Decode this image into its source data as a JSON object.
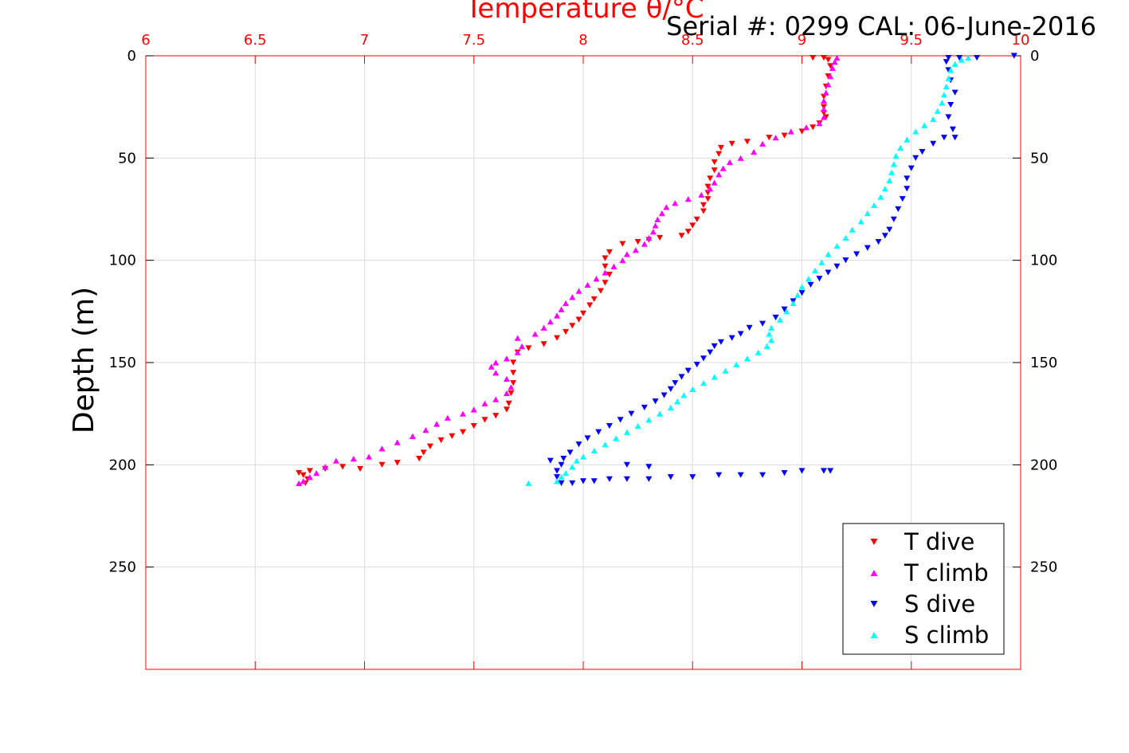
{
  "header": {
    "serial_text": "Serial #: 0299 CAL: 06-June-2016"
  },
  "colors": {
    "axis_top": "#ff0000",
    "t_dive": "#ff0000",
    "t_climb": "#ff00ff",
    "s_dive": "#0000ff",
    "s_climb": "#00ffff",
    "grid": "#dcdcdc"
  },
  "chart_data": {
    "type": "scatter",
    "title": "",
    "xlabel": "Temperature θ/°C",
    "ylabel": "Depth (m)",
    "xlim": [
      6,
      10
    ],
    "ylim": [
      0,
      300
    ],
    "y_reversed": true,
    "grid": true,
    "legend_position": "bottom-right",
    "x_ticks": [
      "6",
      "6.5",
      "7",
      "7.5",
      "8",
      "8.5",
      "9",
      "9.5",
      "10"
    ],
    "x_tick_values": [
      6,
      6.5,
      7,
      7.5,
      8,
      8.5,
      9,
      9.5,
      10
    ],
    "y_ticks_left": [
      "0",
      "50",
      "100",
      "150",
      "200",
      "250"
    ],
    "y_ticks_right": [
      "0",
      "50",
      "100",
      "150",
      "200",
      "250"
    ],
    "y_tick_values": [
      0,
      50,
      100,
      150,
      200,
      250
    ],
    "series": [
      {
        "name": "T dive",
        "marker": "triangle-down",
        "color": "#ff0000",
        "points": [
          [
            9.05,
            1
          ],
          [
            9.1,
            1
          ],
          [
            9.12,
            2
          ],
          [
            9.13,
            5
          ],
          [
            9.12,
            10
          ],
          [
            9.11,
            15
          ],
          [
            9.1,
            20
          ],
          [
            9.1,
            25
          ],
          [
            9.1,
            28
          ],
          [
            9.11,
            30
          ],
          [
            9.08,
            33
          ],
          [
            9.05,
            35
          ],
          [
            9.0,
            37
          ],
          [
            8.92,
            39
          ],
          [
            8.85,
            40
          ],
          [
            8.75,
            42
          ],
          [
            8.68,
            43
          ],
          [
            8.63,
            45
          ],
          [
            8.62,
            48
          ],
          [
            8.6,
            52
          ],
          [
            8.6,
            56
          ],
          [
            8.58,
            60
          ],
          [
            8.57,
            64
          ],
          [
            8.57,
            67
          ],
          [
            8.57,
            70
          ],
          [
            8.55,
            73
          ],
          [
            8.55,
            76
          ],
          [
            8.52,
            80
          ],
          [
            8.5,
            83
          ],
          [
            8.48,
            86
          ],
          [
            8.45,
            88
          ],
          [
            8.35,
            89
          ],
          [
            8.3,
            90
          ],
          [
            8.25,
            91
          ],
          [
            8.18,
            92
          ],
          [
            8.12,
            96
          ],
          [
            8.1,
            99
          ],
          [
            8.1,
            103
          ],
          [
            8.12,
            107
          ],
          [
            8.1,
            111
          ],
          [
            8.08,
            115
          ],
          [
            8.05,
            119
          ],
          [
            8.03,
            122
          ],
          [
            8.0,
            126
          ],
          [
            7.98,
            129
          ],
          [
            7.95,
            132
          ],
          [
            7.92,
            135
          ],
          [
            7.88,
            138
          ],
          [
            7.82,
            141
          ],
          [
            7.75,
            143
          ],
          [
            7.7,
            145
          ],
          [
            7.68,
            150
          ],
          [
            7.68,
            155
          ],
          [
            7.68,
            160
          ],
          [
            7.67,
            165
          ],
          [
            7.66,
            170
          ],
          [
            7.65,
            173
          ],
          [
            7.6,
            176
          ],
          [
            7.55,
            178
          ],
          [
            7.5,
            181
          ],
          [
            7.45,
            184
          ],
          [
            7.4,
            186
          ],
          [
            7.35,
            188
          ],
          [
            7.3,
            191
          ],
          [
            7.27,
            194
          ],
          [
            7.25,
            197
          ],
          [
            7.15,
            199
          ],
          [
            7.08,
            200
          ],
          [
            6.98,
            202
          ],
          [
            6.9,
            201
          ],
          [
            6.82,
            202
          ],
          [
            6.75,
            203
          ],
          [
            6.7,
            204
          ],
          [
            6.72,
            205
          ],
          [
            6.74,
            207
          ],
          [
            6.73,
            209
          ]
        ]
      },
      {
        "name": "T climb",
        "marker": "triangle-up",
        "color": "#ff00ff",
        "points": [
          [
            6.7,
            209
          ],
          [
            6.72,
            208
          ],
          [
            6.75,
            206
          ],
          [
            6.78,
            204
          ],
          [
            6.82,
            201
          ],
          [
            6.87,
            198
          ],
          [
            6.95,
            197
          ],
          [
            7.02,
            196
          ],
          [
            7.08,
            192
          ],
          [
            7.15,
            189
          ],
          [
            7.22,
            186
          ],
          [
            7.28,
            183
          ],
          [
            7.33,
            180
          ],
          [
            7.38,
            177
          ],
          [
            7.45,
            175
          ],
          [
            7.5,
            173
          ],
          [
            7.55,
            170
          ],
          [
            7.6,
            168
          ],
          [
            7.65,
            165
          ],
          [
            7.67,
            162
          ],
          [
            7.65,
            158
          ],
          [
            7.6,
            155
          ],
          [
            7.58,
            152
          ],
          [
            7.6,
            150
          ],
          [
            7.65,
            148
          ],
          [
            7.7,
            145
          ],
          [
            7.72,
            142
          ],
          [
            7.7,
            138
          ],
          [
            7.78,
            136
          ],
          [
            7.82,
            133
          ],
          [
            7.85,
            130
          ],
          [
            7.88,
            127
          ],
          [
            7.9,
            124
          ],
          [
            7.92,
            121
          ],
          [
            7.95,
            118
          ],
          [
            7.98,
            115
          ],
          [
            8.02,
            112
          ],
          [
            8.06,
            109
          ],
          [
            8.1,
            106
          ],
          [
            8.14,
            103
          ],
          [
            8.18,
            100
          ],
          [
            8.2,
            97
          ],
          [
            8.24,
            95
          ],
          [
            8.28,
            92
          ],
          [
            8.3,
            89
          ],
          [
            8.32,
            86
          ],
          [
            8.33,
            83
          ],
          [
            8.34,
            80
          ],
          [
            8.36,
            77
          ],
          [
            8.38,
            74
          ],
          [
            8.42,
            72
          ],
          [
            8.48,
            70
          ],
          [
            8.54,
            68
          ],
          [
            8.58,
            65
          ],
          [
            8.6,
            62
          ],
          [
            8.62,
            58
          ],
          [
            8.64,
            55
          ],
          [
            8.67,
            52
          ],
          [
            8.72,
            50
          ],
          [
            8.78,
            47
          ],
          [
            8.82,
            43
          ],
          [
            8.88,
            40
          ],
          [
            8.95,
            37
          ],
          [
            9.02,
            35
          ],
          [
            9.08,
            33
          ],
          [
            9.1,
            30
          ],
          [
            9.1,
            26
          ],
          [
            9.1,
            22
          ],
          [
            9.11,
            18
          ],
          [
            9.12,
            14
          ],
          [
            9.13,
            10
          ],
          [
            9.14,
            6
          ],
          [
            9.15,
            3
          ],
          [
            9.16,
            1
          ]
        ]
      },
      {
        "name": "S dive",
        "marker": "triangle-down",
        "color": "#0000ff",
        "points": [
          [
            9.97,
            0
          ],
          [
            9.8,
            1
          ],
          [
            9.72,
            1
          ],
          [
            9.67,
            1
          ],
          [
            9.66,
            3
          ],
          [
            9.67,
            7
          ],
          [
            9.68,
            12
          ],
          [
            9.7,
            18
          ],
          [
            9.68,
            24
          ],
          [
            9.67,
            30
          ],
          [
            9.69,
            36
          ],
          [
            9.7,
            40
          ],
          [
            9.65,
            40
          ],
          [
            9.6,
            43
          ],
          [
            9.55,
            47
          ],
          [
            9.52,
            50
          ],
          [
            9.5,
            55
          ],
          [
            9.48,
            60
          ],
          [
            9.48,
            65
          ],
          [
            9.46,
            70
          ],
          [
            9.44,
            75
          ],
          [
            9.42,
            80
          ],
          [
            9.4,
            85
          ],
          [
            9.38,
            88
          ],
          [
            9.35,
            91
          ],
          [
            9.3,
            94
          ],
          [
            9.25,
            97
          ],
          [
            9.2,
            100
          ],
          [
            9.16,
            103
          ],
          [
            9.12,
            106
          ],
          [
            9.08,
            109
          ],
          [
            9.04,
            112
          ],
          [
            9.0,
            116
          ],
          [
            8.96,
            120
          ],
          [
            8.92,
            124
          ],
          [
            8.88,
            128
          ],
          [
            8.82,
            131
          ],
          [
            8.76,
            133
          ],
          [
            8.72,
            136
          ],
          [
            8.68,
            138
          ],
          [
            8.63,
            140
          ],
          [
            8.6,
            142
          ],
          [
            8.58,
            145
          ],
          [
            8.55,
            148
          ],
          [
            8.52,
            151
          ],
          [
            8.48,
            154
          ],
          [
            8.45,
            157
          ],
          [
            8.42,
            160
          ],
          [
            8.4,
            163
          ],
          [
            8.37,
            166
          ],
          [
            8.33,
            169
          ],
          [
            8.28,
            172
          ],
          [
            8.22,
            175
          ],
          [
            8.17,
            178
          ],
          [
            8.12,
            181
          ],
          [
            8.07,
            184
          ],
          [
            8.02,
            187
          ],
          [
            7.98,
            190
          ],
          [
            7.94,
            194
          ],
          [
            7.91,
            197
          ],
          [
            7.9,
            200
          ],
          [
            7.88,
            203
          ],
          [
            7.88,
            206
          ],
          [
            7.9,
            209
          ],
          [
            7.95,
            209
          ],
          [
            8.0,
            208
          ],
          [
            8.05,
            208
          ],
          [
            8.12,
            207
          ],
          [
            8.2,
            207
          ],
          [
            8.3,
            207
          ],
          [
            8.4,
            206
          ],
          [
            8.5,
            206
          ],
          [
            8.62,
            205
          ],
          [
            8.72,
            205
          ],
          [
            8.82,
            205
          ],
          [
            8.92,
            204
          ],
          [
            9.0,
            203
          ],
          [
            9.1,
            203
          ],
          [
            9.13,
            203
          ],
          [
            7.85,
            198
          ],
          [
            8.2,
            200
          ],
          [
            8.3,
            201
          ]
        ]
      },
      {
        "name": "S climb",
        "marker": "triangle-up",
        "color": "#00ffff",
        "points": [
          [
            7.75,
            209
          ],
          [
            7.88,
            208
          ],
          [
            7.9,
            206
          ],
          [
            7.92,
            204
          ],
          [
            7.95,
            201
          ],
          [
            7.97,
            198
          ],
          [
            8.0,
            196
          ],
          [
            8.05,
            193
          ],
          [
            8.1,
            190
          ],
          [
            8.15,
            187
          ],
          [
            8.2,
            184
          ],
          [
            8.25,
            181
          ],
          [
            8.3,
            178
          ],
          [
            8.35,
            175
          ],
          [
            8.4,
            172
          ],
          [
            8.43,
            169
          ],
          [
            8.46,
            166
          ],
          [
            8.5,
            163
          ],
          [
            8.55,
            160
          ],
          [
            8.6,
            157
          ],
          [
            8.65,
            154
          ],
          [
            8.7,
            151
          ],
          [
            8.75,
            148
          ],
          [
            8.8,
            145
          ],
          [
            8.84,
            142
          ],
          [
            8.86,
            139
          ],
          [
            8.85,
            136
          ],
          [
            8.86,
            133
          ],
          [
            8.9,
            129
          ],
          [
            8.93,
            125
          ],
          [
            8.96,
            121
          ],
          [
            8.98,
            117
          ],
          [
            9.0,
            113
          ],
          [
            9.03,
            109
          ],
          [
            9.06,
            105
          ],
          [
            9.09,
            101
          ],
          [
            9.12,
            97
          ],
          [
            9.16,
            93
          ],
          [
            9.2,
            89
          ],
          [
            9.23,
            85
          ],
          [
            9.27,
            81
          ],
          [
            9.3,
            77
          ],
          [
            9.33,
            73
          ],
          [
            9.36,
            69
          ],
          [
            9.38,
            65
          ],
          [
            9.4,
            61
          ],
          [
            9.41,
            57
          ],
          [
            9.42,
            53
          ],
          [
            9.43,
            49
          ],
          [
            9.45,
            45
          ],
          [
            9.48,
            41
          ],
          [
            9.52,
            37
          ],
          [
            9.56,
            34
          ],
          [
            9.6,
            31
          ],
          [
            9.62,
            27
          ],
          [
            9.64,
            23
          ],
          [
            9.65,
            19
          ],
          [
            9.66,
            15
          ],
          [
            9.67,
            11
          ],
          [
            9.68,
            7
          ],
          [
            9.7,
            4
          ],
          [
            9.73,
            2
          ],
          [
            9.76,
            1
          ]
        ]
      }
    ]
  }
}
